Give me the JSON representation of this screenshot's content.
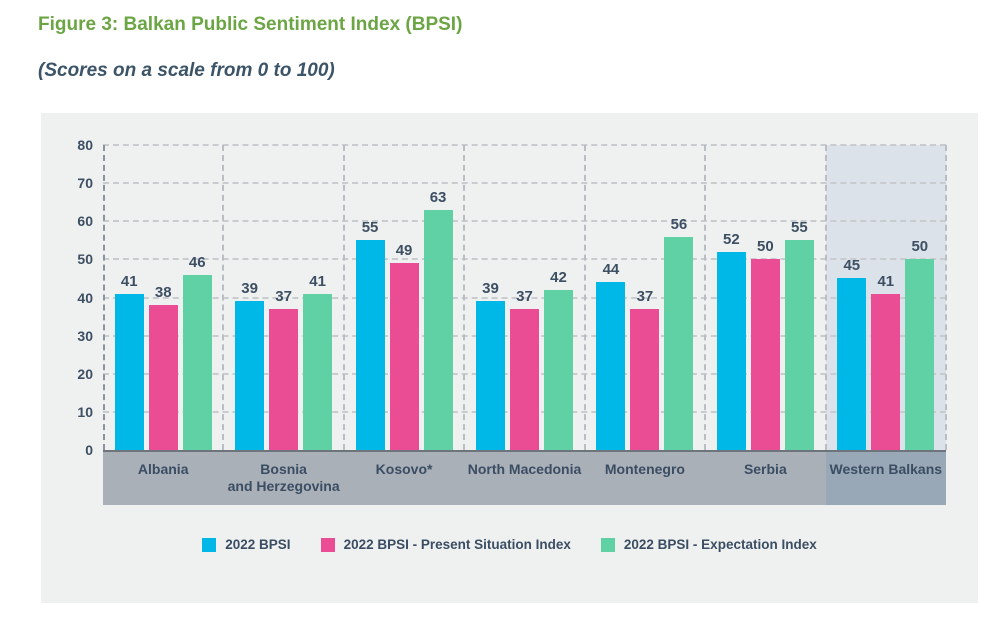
{
  "figure": {
    "title": "Figure 3: Balkan Public Sentiment Index (BPSI)",
    "subtitle": "(Scores on a scale from 0 to 100)"
  },
  "colors": {
    "title_green": "#6ca544",
    "dark_text": "#3d4f63",
    "card_bg": "#eff1f0",
    "highlight_bg": "#dbe2e9",
    "band_bg": "#a9b0b8",
    "band_highlight_bg": "#98a8b6",
    "series_cyan": "#00b8e7",
    "series_pink": "#eb4d95",
    "series_green": "#5fd1a4"
  },
  "chart_data": {
    "type": "bar",
    "title": "Figure 3: Balkan Public Sentiment Index (BPSI)",
    "subtitle": "(Scores on a scale from 0 to 100)",
    "categories": [
      "Albania",
      "Bosnia\nand Herzegovina",
      "Kosovo*",
      "North Macedonia",
      "Montenegro",
      "Serbia",
      "Western Balkans"
    ],
    "series": [
      {
        "name": "2022 BPSI",
        "color": "#00b8e7",
        "values": [
          41,
          39,
          55,
          39,
          44,
          52,
          45
        ]
      },
      {
        "name": "2022 BPSI - Present Situation Index",
        "color": "#eb4d95",
        "values": [
          38,
          37,
          49,
          37,
          37,
          50,
          41
        ]
      },
      {
        "name": "2022 BPSI - Expectation Index",
        "color": "#5fd1a4",
        "values": [
          46,
          41,
          63,
          42,
          56,
          55,
          50
        ]
      }
    ],
    "ylim": [
      0,
      80
    ],
    "yticks": [
      0,
      10,
      20,
      30,
      40,
      50,
      60,
      70,
      80
    ],
    "grid": "horizontal dashed gridlines, dashed vertical category separators",
    "legend_position": "bottom",
    "highlighted_category_index": 6,
    "data_labels": true
  }
}
